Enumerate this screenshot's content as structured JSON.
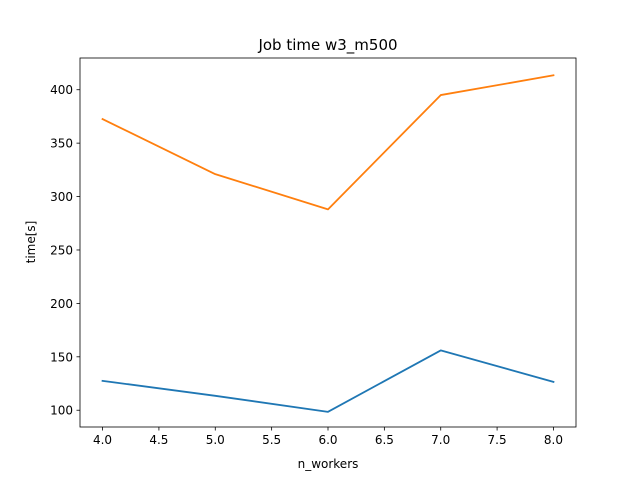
{
  "chart_data": {
    "type": "line",
    "title": "Job time w3_m500",
    "xlabel": "n_workers",
    "ylabel": "time[s]",
    "x": [
      4.0,
      5.0,
      6.0,
      7.0,
      8.0
    ],
    "xlim": [
      3.8,
      8.2
    ],
    "ylim": [
      84.3,
      429.7
    ],
    "xticks": [
      "4.0",
      "4.5",
      "5.0",
      "5.5",
      "6.0",
      "6.5",
      "7.0",
      "7.5",
      "8.0"
    ],
    "yticks": [
      "100",
      "150",
      "200",
      "250",
      "300",
      "350",
      "400"
    ],
    "grid": false,
    "legend": "none",
    "series": [
      {
        "color": "#1f77b4",
        "values": [
          127.5,
          113.5,
          98.5,
          156.0,
          126.5
        ]
      },
      {
        "color": "#ff7f0e",
        "values": [
          372.5,
          321.0,
          288.0,
          395.0,
          413.5
        ]
      }
    ]
  }
}
